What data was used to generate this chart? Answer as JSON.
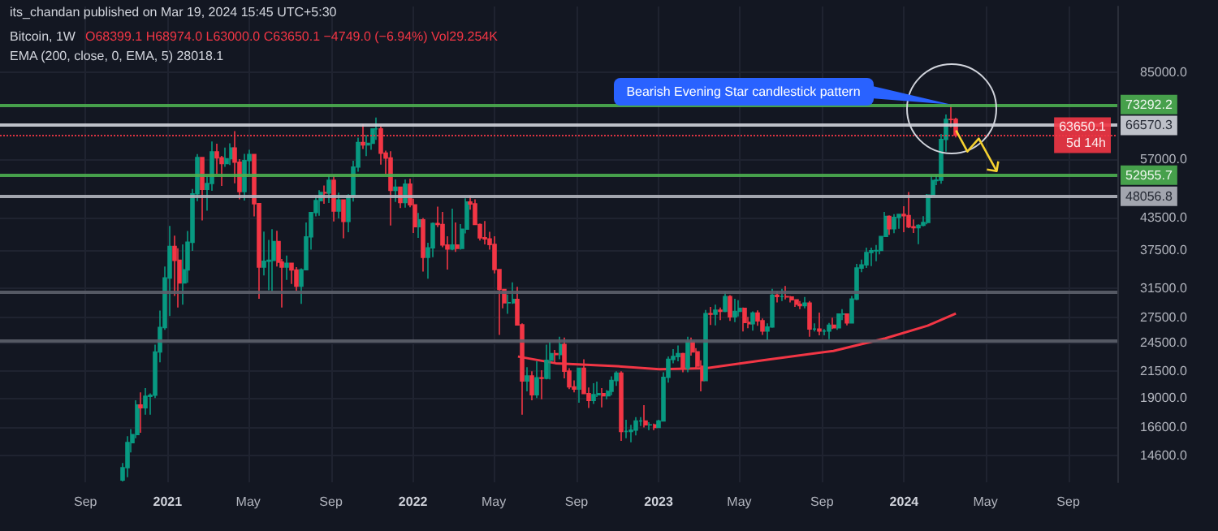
{
  "chart_data": {
    "type": "candlestick",
    "title": "Bitcoin, 1W",
    "subtitle": "its_chandan published on Mar 19, 2024 15:45 UTC+5:30",
    "annotations": [
      "O68399.1 H68974.0 L63000.0 C63650.1 −4749.0 (−6.94%) Vol29.254K",
      "EMA (200, close, 0, EMA, 5) 28018.1",
      {
        "text": "Bearish Evening Star candlestick pattern",
        "x": "2024-03-11",
        "y": 73292.2
      }
    ],
    "series": [
      {
        "x": [
          "2020-10-26",
          "2020-11-02",
          "2020-11-09",
          "2020-11-16",
          "2020-11-23",
          "2020-11-30",
          "2020-12-07",
          "2020-12-14",
          "2020-12-21",
          "2020-12-28",
          "2021-01-04",
          "2021-01-11",
          "2021-01-18",
          "2021-01-25",
          "2021-02-01",
          "2021-02-08",
          "2021-02-15",
          "2021-02-22",
          "2021-03-01",
          "2021-03-08",
          "2021-03-15",
          "2021-03-22",
          "2021-03-29",
          "2021-04-05",
          "2021-04-12",
          "2021-04-19",
          "2021-04-26",
          "2021-05-03",
          "2021-05-10",
          "2021-05-17",
          "2021-05-24",
          "2021-05-31",
          "2021-06-07",
          "2021-06-14",
          "2021-06-21",
          "2021-06-28",
          "2021-07-05",
          "2021-07-12",
          "2021-07-19",
          "2021-07-26",
          "2021-08-02",
          "2021-08-09",
          "2021-08-16",
          "2021-08-23",
          "2021-08-30",
          "2021-09-06",
          "2021-09-13",
          "2021-09-20",
          "2021-09-27",
          "2021-10-04",
          "2021-10-11",
          "2021-10-18",
          "2021-10-25",
          "2021-11-01",
          "2021-11-08",
          "2021-11-15",
          "2021-11-22",
          "2021-11-29",
          "2021-12-06",
          "2021-12-13",
          "2021-12-20",
          "2021-12-27",
          "2022-01-03",
          "2022-01-10",
          "2022-01-17",
          "2022-01-24",
          "2022-01-31",
          "2022-02-07",
          "2022-02-14",
          "2022-02-21",
          "2022-02-28",
          "2022-03-07",
          "2022-03-14",
          "2022-03-21",
          "2022-03-28",
          "2022-04-04",
          "2022-04-11",
          "2022-04-18",
          "2022-04-25",
          "2022-05-02",
          "2022-05-09",
          "2022-05-16",
          "2022-05-23",
          "2022-05-30",
          "2022-06-06",
          "2022-06-13",
          "2022-06-20",
          "2022-06-27",
          "2022-07-04",
          "2022-07-11",
          "2022-07-18",
          "2022-07-25",
          "2022-08-01",
          "2022-08-08",
          "2022-08-15",
          "2022-08-22",
          "2022-08-29",
          "2022-09-05",
          "2022-09-12",
          "2022-09-19",
          "2022-09-26",
          "2022-10-03",
          "2022-10-10",
          "2022-10-17",
          "2022-10-24",
          "2022-10-31",
          "2022-11-07",
          "2022-11-14",
          "2022-11-21",
          "2022-11-28",
          "2022-12-05",
          "2022-12-12",
          "2022-12-19",
          "2022-12-26",
          "2023-01-02",
          "2023-01-09",
          "2023-01-16",
          "2023-01-23",
          "2023-01-30",
          "2023-02-06",
          "2023-02-13",
          "2023-02-20",
          "2023-02-27",
          "2023-03-06",
          "2023-03-13",
          "2023-03-20",
          "2023-03-27",
          "2023-04-03",
          "2023-04-10",
          "2023-04-17",
          "2023-04-24",
          "2023-05-01",
          "2023-05-08",
          "2023-05-15",
          "2023-05-22",
          "2023-05-29",
          "2023-06-05",
          "2023-06-12",
          "2023-06-19",
          "2023-06-26",
          "2023-07-03",
          "2023-07-10",
          "2023-07-17",
          "2023-07-24",
          "2023-07-31",
          "2023-08-07",
          "2023-08-14",
          "2023-08-21",
          "2023-08-28",
          "2023-09-04",
          "2023-09-11",
          "2023-09-18",
          "2023-09-25",
          "2023-10-02",
          "2023-10-09",
          "2023-10-16",
          "2023-10-23",
          "2023-10-30",
          "2023-11-06",
          "2023-11-13",
          "2023-11-20",
          "2023-11-27",
          "2023-12-04",
          "2023-12-11",
          "2023-12-18",
          "2023-12-25",
          "2024-01-01",
          "2024-01-08",
          "2024-01-15",
          "2024-01-22",
          "2024-01-29",
          "2024-02-05",
          "2024-02-12",
          "2024-02-19",
          "2024-02-26",
          "2024-03-04",
          "2024-03-11",
          "2024-03-18"
        ],
        "ohlc": [
          [
            13030,
            14100,
            12950,
            13800
          ],
          [
            13800,
            15950,
            13200,
            15480
          ],
          [
            15480,
            16480,
            14800,
            16060
          ],
          [
            16060,
            18800,
            15800,
            18400
          ],
          [
            18400,
            19500,
            16200,
            18180
          ],
          [
            18180,
            19900,
            17600,
            19150
          ],
          [
            19150,
            19420,
            17600,
            19250
          ],
          [
            19250,
            24300,
            19000,
            23480
          ],
          [
            23480,
            28400,
            22400,
            26280
          ],
          [
            26280,
            34800,
            26000,
            33000
          ],
          [
            33000,
            41950,
            27700,
            38150
          ],
          [
            38150,
            40100,
            30400,
            35800
          ],
          [
            35800,
            37850,
            28800,
            32260
          ],
          [
            32260,
            38500,
            29200,
            34260
          ],
          [
            34260,
            40950,
            32300,
            38900
          ],
          [
            38900,
            49700,
            37400,
            48600
          ],
          [
            48600,
            58350,
            47000,
            57400
          ],
          [
            57400,
            57500,
            43000,
            49600
          ],
          [
            49600,
            52650,
            44950,
            50970
          ],
          [
            50970,
            61800,
            49300,
            58950
          ],
          [
            58950,
            61200,
            53300,
            57350
          ],
          [
            57350,
            57850,
            50400,
            55860
          ],
          [
            55860,
            60100,
            55000,
            57100
          ],
          [
            57100,
            61300,
            55500,
            60000
          ],
          [
            60000,
            64850,
            51000,
            56200
          ],
          [
            56200,
            57000,
            47400,
            49100
          ],
          [
            49100,
            58400,
            47100,
            56630
          ],
          [
            56630,
            59500,
            53000,
            58240
          ],
          [
            58240,
            58300,
            43800,
            46450
          ],
          [
            46450,
            46500,
            30000,
            34700
          ],
          [
            34700,
            40850,
            33400,
            35650
          ],
          [
            35650,
            39300,
            31200,
            35800
          ],
          [
            35800,
            41300,
            31000,
            39000
          ],
          [
            39000,
            41000,
            34800,
            35500
          ],
          [
            35500,
            36000,
            28800,
            34700
          ],
          [
            34700,
            36600,
            32700,
            35300
          ],
          [
            35300,
            35400,
            32100,
            34240
          ],
          [
            34240,
            34700,
            31100,
            31780
          ],
          [
            31780,
            34500,
            29300,
            34270
          ],
          [
            34270,
            42600,
            34200,
            39860
          ],
          [
            39860,
            44700,
            37600,
            44600
          ],
          [
            44600,
            48100,
            43800,
            47100
          ],
          [
            47100,
            49400,
            43950,
            48900
          ],
          [
            48900,
            50500,
            46400,
            48800
          ],
          [
            48800,
            52900,
            46600,
            51700
          ],
          [
            51700,
            52800,
            42800,
            44900
          ],
          [
            44900,
            48850,
            43400,
            47250
          ],
          [
            47250,
            47400,
            39600,
            42800
          ],
          [
            42800,
            48500,
            40750,
            48200
          ],
          [
            48200,
            56600,
            46900,
            54950
          ],
          [
            54950,
            62900,
            53800,
            61550
          ],
          [
            61550,
            67000,
            59700,
            60850
          ],
          [
            60850,
            63700,
            57800,
            61300
          ],
          [
            61300,
            65600,
            59500,
            65500
          ],
          [
            65500,
            69000,
            62300,
            65500
          ],
          [
            65500,
            66300,
            55600,
            58600
          ],
          [
            58600,
            59300,
            53300,
            57300
          ],
          [
            57300,
            59100,
            42000,
            49400
          ],
          [
            49400,
            51900,
            46800,
            50100
          ],
          [
            50100,
            50200,
            45500,
            46700
          ],
          [
            46700,
            51900,
            45600,
            50800
          ],
          [
            50800,
            52100,
            45700,
            46200
          ],
          [
            46200,
            47500,
            40600,
            41800
          ],
          [
            41800,
            44500,
            39700,
            43100
          ],
          [
            43100,
            43500,
            34000,
            36300
          ],
          [
            36300,
            38800,
            32900,
            37900
          ],
          [
            37900,
            42600,
            36300,
            42400
          ],
          [
            42400,
            45800,
            41700,
            42200
          ],
          [
            42200,
            44700,
            38000,
            38400
          ],
          [
            38400,
            40000,
            34300,
            37700
          ],
          [
            37700,
            45400,
            37500,
            38400
          ],
          [
            38400,
            42600,
            37200,
            37800
          ],
          [
            37800,
            42300,
            37600,
            41300
          ],
          [
            41300,
            47600,
            40500,
            46800
          ],
          [
            46800,
            48200,
            45200,
            46400
          ],
          [
            46400,
            47400,
            42100,
            42200
          ],
          [
            42200,
            42400,
            39200,
            39700
          ],
          [
            39700,
            42900,
            38500,
            39500
          ],
          [
            39500,
            40800,
            37600,
            38500
          ],
          [
            38500,
            40000,
            33700,
            34300
          ],
          [
            34300,
            34400,
            25400,
            31300
          ],
          [
            31300,
            31300,
            28700,
            29450
          ],
          [
            29450,
            30600,
            28000,
            29450
          ],
          [
            29450,
            32350,
            29300,
            29900
          ],
          [
            29900,
            31700,
            26600,
            26600
          ],
          [
            26600,
            26800,
            17600,
            20550
          ],
          [
            20550,
            21900,
            19600,
            21030
          ],
          [
            21030,
            21500,
            18800,
            19300
          ],
          [
            19300,
            22500,
            19000,
            20850
          ],
          [
            20850,
            21600,
            18900,
            20800
          ],
          [
            20800,
            24300,
            20700,
            22600
          ],
          [
            22600,
            24600,
            20700,
            23300
          ],
          [
            23300,
            23700,
            22400,
            23200
          ],
          [
            23200,
            25200,
            22700,
            24300
          ],
          [
            24300,
            25100,
            20800,
            21500
          ],
          [
            21500,
            21800,
            19800,
            20000
          ],
          [
            20000,
            20600,
            19500,
            19800
          ],
          [
            19800,
            21800,
            18600,
            21800
          ],
          [
            21800,
            22700,
            19400,
            19400
          ],
          [
            19400,
            19950,
            18150,
            18800
          ],
          [
            18800,
            20350,
            18500,
            19300
          ],
          [
            19300,
            20500,
            19100,
            19400
          ],
          [
            19400,
            19900,
            18200,
            19200
          ],
          [
            19200,
            19700,
            18900,
            19600
          ],
          [
            19600,
            21000,
            19250,
            20600
          ],
          [
            20600,
            21500,
            20100,
            21300
          ],
          [
            21300,
            21500,
            15600,
            16300
          ],
          [
            16300,
            17200,
            15800,
            16300
          ],
          [
            16300,
            16800,
            15500,
            16400
          ],
          [
            16400,
            17400,
            16000,
            17100
          ],
          [
            17100,
            17400,
            16700,
            17100
          ],
          [
            17100,
            18400,
            16600,
            16800
          ],
          [
            16800,
            17000,
            16400,
            16800
          ],
          [
            16800,
            16900,
            16400,
            16600
          ],
          [
            16600,
            17200,
            16600,
            17100
          ],
          [
            17100,
            21400,
            17100,
            20900
          ],
          [
            20900,
            23000,
            20400,
            22700
          ],
          [
            22700,
            23800,
            22300,
            23000
          ],
          [
            23000,
            24200,
            22500,
            23300
          ],
          [
            23300,
            23400,
            21400,
            21800
          ],
          [
            21800,
            25200,
            21400,
            24600
          ],
          [
            24600,
            25100,
            23100,
            23500
          ],
          [
            23500,
            23900,
            21800,
            22000
          ],
          [
            22000,
            22600,
            19600,
            20600
          ],
          [
            20600,
            28500,
            20600,
            28000
          ],
          [
            28000,
            28900,
            26600,
            27950
          ],
          [
            27950,
            29200,
            26550,
            28450
          ],
          [
            28450,
            28800,
            27200,
            28300
          ],
          [
            28300,
            31000,
            28200,
            30300
          ],
          [
            30300,
            30500,
            27100,
            27600
          ],
          [
            27600,
            30000,
            26950,
            28300
          ],
          [
            28300,
            29800,
            27650,
            28700
          ],
          [
            28700,
            28800,
            25800,
            26900
          ],
          [
            26900,
            27600,
            26200,
            26750
          ],
          [
            26750,
            28300,
            25900,
            28100
          ],
          [
            28100,
            28450,
            26500,
            27100
          ],
          [
            27100,
            27400,
            25400,
            25850
          ],
          [
            25850,
            26800,
            24800,
            26350
          ],
          [
            26350,
            31400,
            26250,
            30500
          ],
          [
            30500,
            31050,
            29500,
            30300
          ],
          [
            30300,
            31400,
            29700,
            30300
          ],
          [
            30300,
            31800,
            29900,
            30250
          ],
          [
            30250,
            30400,
            29500,
            29850
          ],
          [
            29850,
            29950,
            28900,
            29250
          ],
          [
            29250,
            29700,
            28600,
            29050
          ],
          [
            29050,
            30250,
            28700,
            29400
          ],
          [
            29400,
            29700,
            25200,
            26100
          ],
          [
            26100,
            26800,
            25800,
            26100
          ],
          [
            26100,
            28150,
            25350,
            25850
          ],
          [
            25850,
            26100,
            25350,
            25850
          ],
          [
            25850,
            26850,
            24900,
            26550
          ],
          [
            26550,
            27500,
            26100,
            26250
          ],
          [
            26250,
            28050,
            26000,
            27950
          ],
          [
            27950,
            28600,
            27200,
            27950
          ],
          [
            27950,
            28000,
            26550,
            26850
          ],
          [
            26850,
            30400,
            26800,
            29950
          ],
          [
            29950,
            35200,
            29800,
            34550
          ],
          [
            34550,
            35900,
            33900,
            35050
          ],
          [
            35050,
            37950,
            34550,
            37100
          ],
          [
            37100,
            37950,
            34850,
            37400
          ],
          [
            37400,
            38400,
            35650,
            37450
          ],
          [
            37450,
            40000,
            36800,
            39950
          ],
          [
            39950,
            44700,
            39950,
            43800
          ],
          [
            43800,
            44000,
            40250,
            41400
          ],
          [
            41400,
            44250,
            40550,
            43600
          ],
          [
            43600,
            44300,
            41400,
            44200
          ],
          [
            44200,
            45900,
            40750,
            43950
          ],
          [
            43950,
            49000,
            41500,
            41750
          ],
          [
            41750,
            43200,
            40600,
            41600
          ],
          [
            41600,
            42250,
            38550,
            42050
          ],
          [
            42050,
            43850,
            41850,
            42600
          ],
          [
            42600,
            48550,
            42250,
            48300
          ],
          [
            48300,
            52800,
            47700,
            51650
          ],
          [
            51650,
            52950,
            50600,
            51750
          ],
          [
            51750,
            64000,
            50900,
            62400
          ],
          [
            62400,
            70000,
            59000,
            68400
          ],
          [
            68400,
            73292.2,
            66000,
            68399.1
          ],
          [
            68399.1,
            68974.0,
            63000.0,
            63650.1
          ]
        ]
      },
      {
        "type": "line",
        "color": "#f23645",
        "x": [
          "2022-06-06",
          "2022-08-01",
          "2022-10-31",
          "2023-01-02",
          "2023-03-13",
          "2023-06-05",
          "2023-09-18",
          "2023-12-04",
          "2024-02-05",
          "2024-03-18"
        ],
        "values": [
          23000,
          22300,
          22000,
          21700,
          21800,
          22600,
          23600,
          25000,
          26500,
          28018.1
        ]
      }
    ],
    "log": true,
    "marker": "none",
    "grid": true,
    "xlim": [
      "2020-04-27",
      "2024-11-13"
    ],
    "xticks": [
      {
        "value": "2020-09",
        "label": "Sep"
      },
      {
        "value": "2021",
        "label": "2021"
      },
      {
        "value": "2021-05",
        "label": "May"
      },
      {
        "value": "2021-09",
        "label": "Sep"
      },
      {
        "value": "2022",
        "label": "2022"
      },
      {
        "value": "2022-05",
        "label": "May"
      },
      {
        "value": "2022-09",
        "label": "Sep"
      },
      {
        "value": "2023",
        "label": "2023"
      },
      {
        "value": "2023-05",
        "label": "May"
      },
      {
        "value": "2023-09",
        "label": "Sep"
      },
      {
        "value": "2024",
        "label": "2024"
      },
      {
        "value": "2024-05",
        "label": "May"
      },
      {
        "value": "2024-09",
        "label": "Sep"
      }
    ],
    "ylim": [
      12900,
      115000
    ],
    "yticks": [
      {
        "value": 14600,
        "label": "14600.0"
      },
      {
        "value": 16600,
        "label": "16600.0"
      },
      {
        "value": 19000,
        "label": "19000.0"
      },
      {
        "value": 21500,
        "label": "21500.0"
      },
      {
        "value": 24500,
        "label": "24500.0"
      },
      {
        "value": 27500,
        "label": "27500.0"
      },
      {
        "value": 31500,
        "label": "31500.0"
      },
      {
        "value": 37500,
        "label": "37500.0"
      },
      {
        "value": 43500,
        "label": "43500.0"
      },
      {
        "value": 57000,
        "label": "57000.0"
      },
      {
        "value": 85000,
        "label": "85000.0"
      }
    ],
    "ref_lines": [
      {
        "axis": "y",
        "value": 73292.2,
        "label": "73292.2",
        "color": "#4caf50"
      },
      {
        "axis": "y",
        "value": 66570.3,
        "label": "66570.3",
        "color": "#d1d4dc"
      },
      {
        "axis": "y",
        "value": 63650.1,
        "label": "63650.1\n5d 14h",
        "color": "#f23645",
        "line_style": "dotted"
      },
      {
        "axis": "y",
        "value": 52955.7,
        "label": "52955.7",
        "color": "#4caf50"
      },
      {
        "axis": "y",
        "value": 48056.8,
        "label": "48056.8",
        "color": "#b2b5be"
      },
      {
        "axis": "y",
        "value": 31000,
        "label": null,
        "color": "#5d606b"
      },
      {
        "axis": "y",
        "value": 24750,
        "label": null,
        "color": "#5d606b"
      }
    ]
  }
}
